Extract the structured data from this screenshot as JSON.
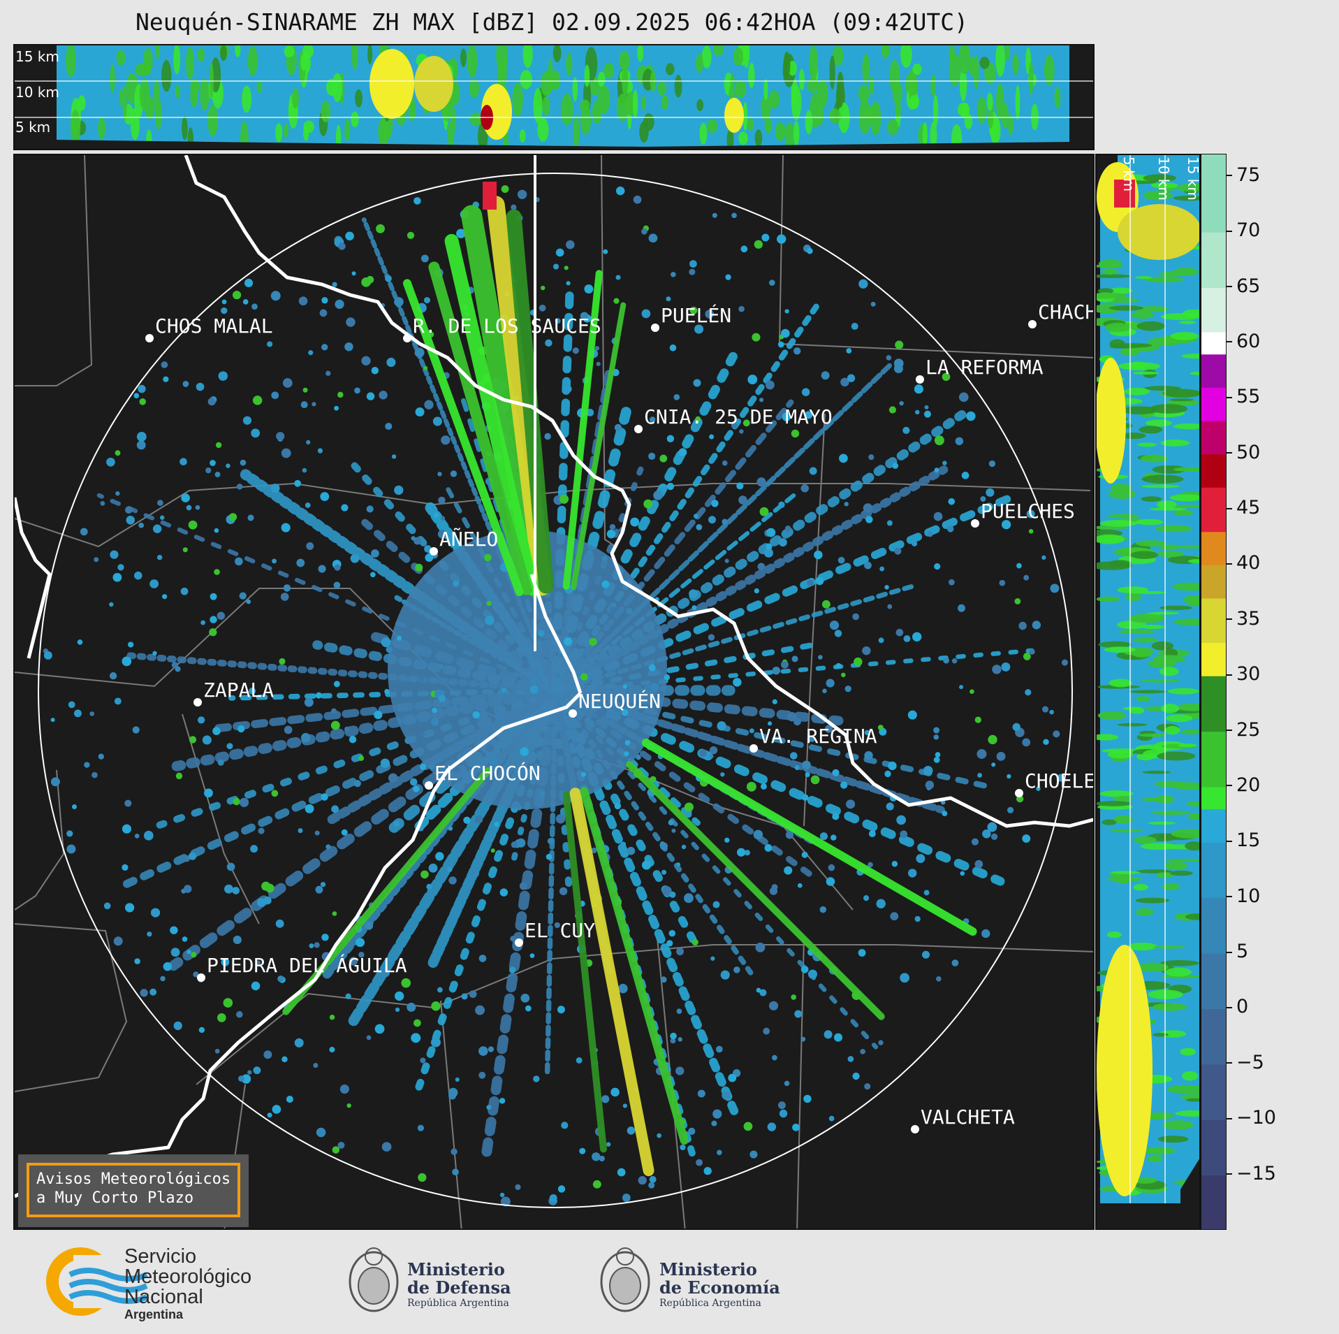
{
  "title": "Neuquén-SINARAME ZH MAX [dBZ] 02.09.2025 06:42HOA (09:42UTC)",
  "top_panel": {
    "height_labels": [
      "15 km",
      "10 km",
      "5 km"
    ]
  },
  "side_panel": {
    "height_labels": [
      "5 km",
      "10 km",
      "15 km"
    ]
  },
  "colorbar": {
    "unit": "dBZ",
    "ticks": [
      "75",
      "70",
      "65",
      "60",
      "55",
      "50",
      "45",
      "40",
      "35",
      "30",
      "25",
      "20",
      "15",
      "10",
      "5",
      "0",
      "−5",
      "−10",
      "−15"
    ],
    "range": [
      -20,
      77
    ],
    "colors": [
      {
        "from": -20,
        "to": -15,
        "color": "#3a3b6b"
      },
      {
        "from": -15,
        "to": -10,
        "color": "#3d4a7c"
      },
      {
        "from": -10,
        "to": -5,
        "color": "#40588a"
      },
      {
        "from": -5,
        "to": 0,
        "color": "#3f6899"
      },
      {
        "from": 0,
        "to": 5,
        "color": "#3b78a8"
      },
      {
        "from": 5,
        "to": 10,
        "color": "#3587b8"
      },
      {
        "from": 10,
        "to": 15,
        "color": "#2e98c8"
      },
      {
        "from": 15,
        "to": 18,
        "color": "#28a9d8"
      },
      {
        "from": 18,
        "to": 20,
        "color": "#37e62e"
      },
      {
        "from": 20,
        "to": 25,
        "color": "#3bc22f"
      },
      {
        "from": 25,
        "to": 30,
        "color": "#2e8f25"
      },
      {
        "from": 30,
        "to": 33,
        "color": "#f2ee2c"
      },
      {
        "from": 33,
        "to": 37,
        "color": "#d8d632"
      },
      {
        "from": 37,
        "to": 40,
        "color": "#c9a62a"
      },
      {
        "from": 40,
        "to": 43,
        "color": "#e08a1e"
      },
      {
        "from": 43,
        "to": 47,
        "color": "#e0203a"
      },
      {
        "from": 47,
        "to": 50,
        "color": "#b00012"
      },
      {
        "from": 50,
        "to": 53,
        "color": "#c0006a"
      },
      {
        "from": 53,
        "to": 56,
        "color": "#e000e0"
      },
      {
        "from": 56,
        "to": 59,
        "color": "#9d0aa8"
      },
      {
        "from": 59,
        "to": 61,
        "color": "#ffffff"
      },
      {
        "from": 61,
        "to": 65,
        "color": "#d6f0e2"
      },
      {
        "from": 65,
        "to": 70,
        "color": "#b0e6cc"
      },
      {
        "from": 70,
        "to": 77,
        "color": "#8fdcbc"
      }
    ]
  },
  "cities": [
    {
      "name": "CHOS MALAL"
    },
    {
      "name": "R. DE LOS SAUCES"
    },
    {
      "name": "PUELÉN"
    },
    {
      "name": "CHACH"
    },
    {
      "name": "LA REFORMA"
    },
    {
      "name": "CNIA. 25 DE MAYO"
    },
    {
      "name": "PUELCHES"
    },
    {
      "name": "AÑELO"
    },
    {
      "name": "ZAPALA"
    },
    {
      "name": "NEUQUÉN"
    },
    {
      "name": "VA. REGINA"
    },
    {
      "name": "EL CHOCÓN"
    },
    {
      "name": "CHOELE"
    },
    {
      "name": "EL CUY"
    },
    {
      "name": "PIEDRA DEL ÁGUILA"
    },
    {
      "name": "VALCHETA"
    }
  ],
  "aviso": {
    "line1": "Avisos Meteorológicos",
    "line2": "a Muy Corto Plazo"
  },
  "footer": {
    "smn": {
      "line1": "Servicio",
      "line2": "Meteorológico",
      "line3": "Nacional",
      "line4": "Argentina"
    },
    "defensa": {
      "line1": "Ministerio",
      "line2": "de Defensa",
      "line3": "República Argentina"
    },
    "economia": {
      "line1": "Ministerio",
      "line2": "de Economía",
      "line3": "República Argentina"
    }
  }
}
